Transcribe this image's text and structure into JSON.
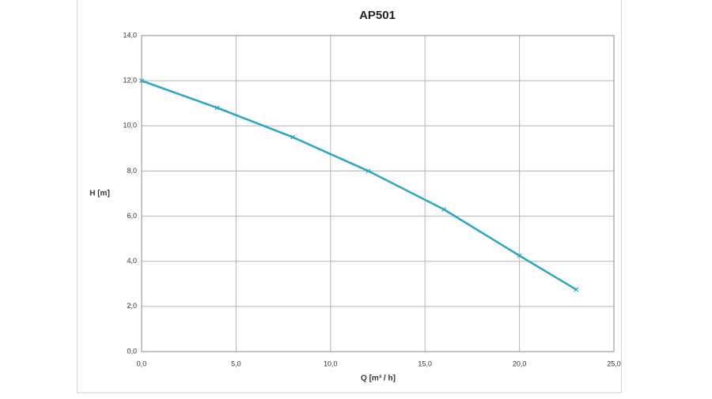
{
  "chart_data": {
    "type": "line",
    "title": "AP501",
    "x_label": "Q [m³ / h]",
    "y_label": "H [m]",
    "x": [
      0,
      4,
      8,
      12,
      16,
      20,
      23
    ],
    "series": [
      {
        "color": "#2aa6c0",
        "values": [
          12.0,
          10.8,
          9.5,
          8.0,
          6.3,
          4.25,
          2.75
        ]
      }
    ],
    "xlim": [
      0,
      25
    ],
    "xticks": [
      {
        "value": 0,
        "label": "0,0"
      },
      {
        "value": 5,
        "label": "5,0"
      },
      {
        "value": 10,
        "label": "10,0"
      },
      {
        "value": 15,
        "label": "15,0"
      },
      {
        "value": 20,
        "label": "20,0"
      },
      {
        "value": 25,
        "label": "25,0"
      }
    ],
    "ylim": [
      0,
      14
    ],
    "yticks": [
      {
        "value": 0,
        "label": "0,0"
      },
      {
        "value": 2,
        "label": "2,0"
      },
      {
        "value": 4,
        "label": "4,0"
      },
      {
        "value": 6,
        "label": "6,0"
      },
      {
        "value": 8,
        "label": "8,0"
      },
      {
        "value": 10,
        "label": "10,0"
      },
      {
        "value": 12,
        "label": "12,0"
      },
      {
        "value": 14,
        "label": "14,0"
      }
    ],
    "grid": true
  }
}
